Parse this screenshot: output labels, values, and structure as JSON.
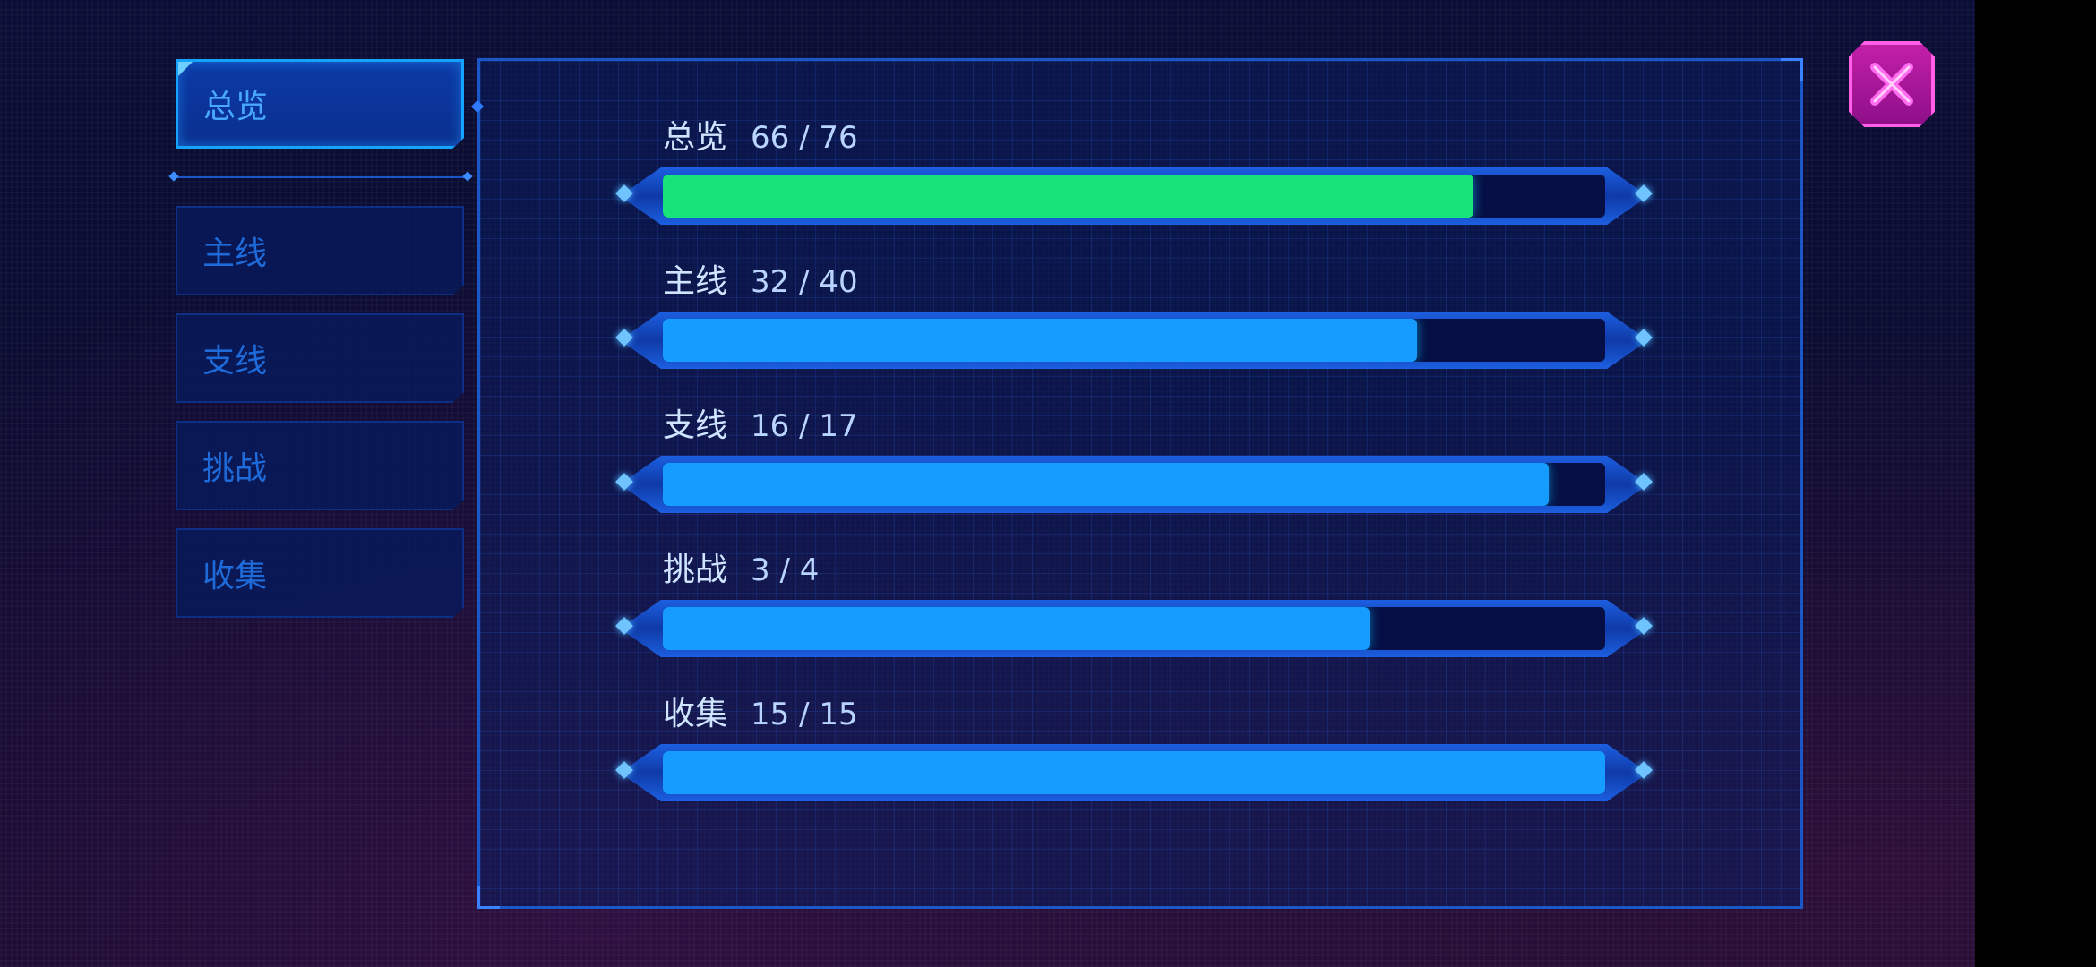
{
  "sidebar": {
    "tabs": [
      {
        "label": "总览",
        "active": true
      },
      {
        "label": "主线",
        "active": false
      },
      {
        "label": "支线",
        "active": false
      },
      {
        "label": "挑战",
        "active": false
      },
      {
        "label": "收集",
        "active": false
      }
    ]
  },
  "progress": {
    "rows": [
      {
        "label": "总览",
        "count": "66 / 76",
        "fraction": 0.86,
        "color": "#18e27a"
      },
      {
        "label": "主线",
        "count": "32 / 40",
        "fraction": 0.8,
        "color": "#169bff"
      },
      {
        "label": "支线",
        "count": "16 / 17",
        "fraction": 0.94,
        "color": "#169bff"
      },
      {
        "label": "挑战",
        "count": "3 / 4",
        "fraction": 0.75,
        "color": "#169bff"
      },
      {
        "label": "收集",
        "count": "15 / 15",
        "fraction": 1.0,
        "color": "#169bff"
      }
    ]
  },
  "close_button": {
    "icon": "close-x-icon",
    "color": "#c21fa7"
  }
}
